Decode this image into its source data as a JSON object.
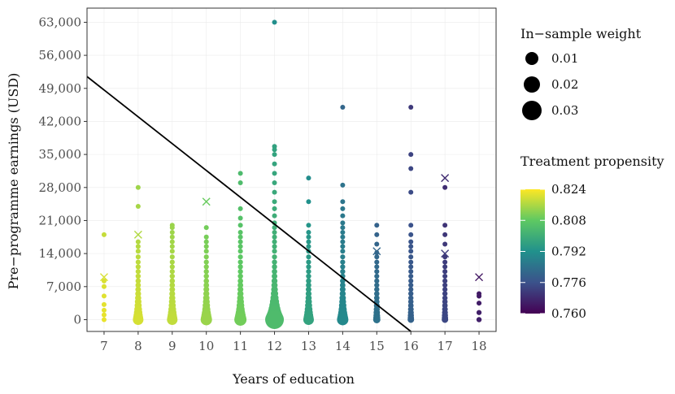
{
  "chart_data": {
    "type": "scatter",
    "title": "",
    "xlabel": "Years of education",
    "ylabel": "Pre−programme earnings (USD)",
    "x_ticks": [
      "7",
      "8",
      "9",
      "10",
      "11",
      "12",
      "13",
      "14",
      "15",
      "16",
      "17",
      "18"
    ],
    "y_ticks": [
      "0",
      "7,000",
      "14,000",
      "21,000",
      "28,000",
      "35,000",
      "42,000",
      "49,000",
      "56,000",
      "63,000"
    ],
    "xlim": [
      6.5,
      18.5
    ],
    "ylim": [
      -2500,
      66000
    ],
    "size_legend": {
      "title": "In−sample weight",
      "labels": [
        "0.01",
        "0.02",
        "0.03"
      ],
      "values": [
        0.01,
        0.02,
        0.03
      ]
    },
    "color_legend": {
      "title": "Treatment propensity",
      "labels": [
        "0.824",
        "0.808",
        "0.792",
        "0.776",
        "0.760"
      ],
      "range": [
        0.76,
        0.824
      ]
    },
    "colors": [
      "#440154",
      "#3b528b",
      "#21918c",
      "#5ec962",
      "#fde725"
    ],
    "decision_line": {
      "x1": 6.5,
      "y1": 51500,
      "x2": 16,
      "y2": -2500,
      "color": "#000000"
    },
    "columns": [
      {
        "x": 7,
        "earnings": [
          0,
          1000,
          2000,
          3200,
          5000,
          7000,
          8200,
          18000
        ],
        "crosses": [
          9000
        ]
      },
      {
        "x": 8,
        "earnings": [
          0,
          400,
          900,
          1500,
          2200,
          3000,
          3800,
          4600,
          5500,
          6400,
          7300,
          8200,
          9200,
          10200,
          11200,
          12200,
          13300,
          14500,
          15500,
          16500,
          24000,
          28000
        ],
        "crosses": [
          18000
        ]
      },
      {
        "x": 9,
        "earnings": [
          0,
          400,
          900,
          1500,
          2200,
          3000,
          3800,
          4600,
          5500,
          6400,
          7300,
          8200,
          9200,
          10200,
          11200,
          12200,
          13300,
          14500,
          15500,
          16500,
          17500,
          18500,
          19500,
          20000
        ],
        "crosses": []
      },
      {
        "x": 10,
        "earnings": [
          0,
          400,
          900,
          1500,
          2200,
          3000,
          3800,
          4600,
          5500,
          6400,
          7300,
          8200,
          9200,
          10200,
          11200,
          12200,
          13300,
          14500,
          15500,
          16500,
          17500,
          19500
        ],
        "crosses": [
          25000
        ]
      },
      {
        "x": 11,
        "earnings": [
          0,
          400,
          900,
          1500,
          2200,
          3000,
          3800,
          4600,
          5500,
          6400,
          7300,
          8200,
          9200,
          10200,
          11200,
          12200,
          13300,
          14500,
          15500,
          16500,
          17500,
          18500,
          20000,
          21500,
          23500,
          29000,
          31000
        ],
        "crosses": []
      },
      {
        "x": 12,
        "earnings": [
          0,
          400,
          900,
          1500,
          2200,
          3000,
          3800,
          4600,
          5500,
          6400,
          7300,
          8200,
          9200,
          10200,
          11200,
          12200,
          13300,
          14500,
          15500,
          16500,
          17500,
          18500,
          19500,
          20500,
          22000,
          23500,
          25000,
          27000,
          29000,
          31000,
          33000,
          35000,
          36000,
          36700,
          63000
        ],
        "crosses": []
      },
      {
        "x": 13,
        "earnings": [
          0,
          400,
          900,
          1500,
          2200,
          3000,
          3800,
          4600,
          5500,
          6400,
          7300,
          8200,
          9200,
          10200,
          11200,
          12200,
          13300,
          14500,
          15500,
          16500,
          17500,
          18500,
          20000,
          25000,
          30000
        ],
        "crosses": []
      },
      {
        "x": 14,
        "earnings": [
          0,
          400,
          900,
          1500,
          2200,
          3000,
          3800,
          4600,
          5500,
          6400,
          7300,
          8200,
          9200,
          10200,
          11200,
          12200,
          13300,
          14500,
          15500,
          16500,
          17500,
          18500,
          19500,
          20500,
          22000,
          23500,
          25000,
          28500,
          45000
        ],
        "crosses": []
      },
      {
        "x": 15,
        "earnings": [
          0,
          400,
          900,
          1500,
          2200,
          3000,
          3800,
          4600,
          5500,
          6400,
          7300,
          8200,
          9200,
          10200,
          11200,
          12200,
          13300,
          14200,
          16000,
          18000,
          20000
        ],
        "crosses": [
          14500
        ]
      },
      {
        "x": 16,
        "earnings": [
          0,
          400,
          900,
          1500,
          2200,
          3000,
          3800,
          4600,
          5500,
          6400,
          7300,
          8200,
          9200,
          10200,
          11200,
          12200,
          13300,
          14500,
          15500,
          16500,
          18000,
          20000,
          27000,
          32000,
          35000,
          45000
        ],
        "crosses": []
      },
      {
        "x": 17,
        "earnings": [
          0,
          400,
          900,
          1500,
          2200,
          3000,
          3800,
          4600,
          5500,
          6400,
          7300,
          8200,
          9200,
          10200,
          11200,
          12200,
          13300,
          16000,
          18000,
          20000,
          28000
        ],
        "crosses": [
          14000,
          30000
        ]
      },
      {
        "x": 18,
        "earnings": [
          0,
          1500,
          3500,
          5000,
          5500
        ],
        "crosses": [
          9000
        ]
      }
    ]
  }
}
